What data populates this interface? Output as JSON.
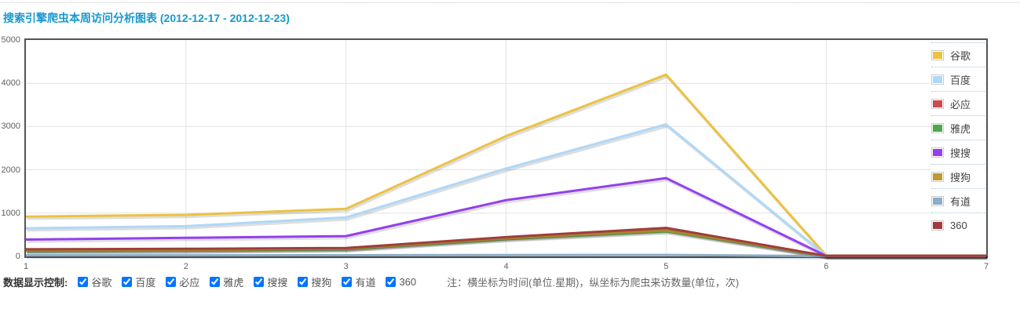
{
  "header": {
    "title": "搜索引擎爬虫本周访问分析图表 (2012-12-17 - 2012-12-23)"
  },
  "chart_data": {
    "type": "line",
    "title": "搜索引擎爬虫本周访问分析图表 (2012-12-17 - 2012-12-23)",
    "xlabel": "时间(单位.星期)",
    "ylabel": "爬虫来访数量(单位，次)",
    "xticks": [
      1,
      2,
      3,
      4,
      5,
      6,
      7
    ],
    "yticks": [
      0,
      1000,
      2000,
      3000,
      4000,
      5000
    ],
    "xlim": [
      1,
      7
    ],
    "ylim": [
      0,
      5000
    ],
    "grid": true,
    "legend_position": "top-right",
    "series": [
      {
        "name": "谷歌",
        "color": "#edc240",
        "values": [
          920,
          960,
          1100,
          2780,
          4200,
          20,
          20
        ]
      },
      {
        "name": "百度",
        "color": "#afd8f8",
        "values": [
          650,
          700,
          900,
          2030,
          3050,
          15,
          15
        ]
      },
      {
        "name": "必应",
        "color": "#cb4b4b",
        "values": [
          150,
          160,
          185,
          430,
          620,
          10,
          10
        ]
      },
      {
        "name": "雅虎",
        "color": "#4da74d",
        "values": [
          120,
          135,
          165,
          400,
          580,
          8,
          8
        ]
      },
      {
        "name": "搜搜",
        "color": "#9440ed",
        "values": [
          390,
          430,
          470,
          1300,
          1810,
          12,
          12
        ]
      },
      {
        "name": "搜狗",
        "color": "#be9b33",
        "values": [
          135,
          145,
          175,
          415,
          600,
          10,
          10
        ]
      },
      {
        "name": "有道",
        "color": "#8cadc6",
        "values": [
          25,
          25,
          28,
          30,
          35,
          5,
          5
        ]
      },
      {
        "name": "360",
        "color": "#a23c3c",
        "values": [
          165,
          175,
          195,
          445,
          660,
          12,
          12
        ]
      }
    ]
  },
  "controls": {
    "label": "数据显示控制:",
    "checkboxes": [
      {
        "label": "谷歌",
        "checked": true
      },
      {
        "label": "百度",
        "checked": true
      },
      {
        "label": "必应",
        "checked": true
      },
      {
        "label": "雅虎",
        "checked": true
      },
      {
        "label": "搜搜",
        "checked": true
      },
      {
        "label": "搜狗",
        "checked": true
      },
      {
        "label": "有道",
        "checked": true
      },
      {
        "label": "360",
        "checked": true
      }
    ],
    "note": "注：横坐标为时间(单位.星期)，纵坐标为爬虫来访数量(单位，次)"
  },
  "colors": {
    "title": "#1898ce",
    "axis_border": "#545454",
    "grid": "#e3e3e3",
    "tick_label": "#606060",
    "legend_separator": "#a6c9e0"
  }
}
